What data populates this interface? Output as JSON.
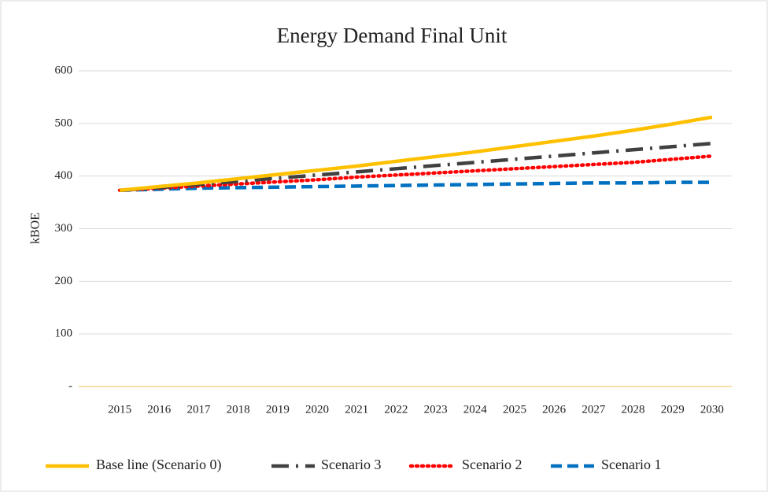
{
  "chart_data": {
    "type": "line",
    "title": "Energy Demand Final Unit",
    "ylabel": "kBOE",
    "categories": [
      "2015",
      "2016",
      "2017",
      "2018",
      "2019",
      "2020",
      "2021",
      "2022",
      "2023",
      "2024",
      "2025",
      "2026",
      "2027",
      "2028",
      "2029",
      "2030"
    ],
    "series": [
      {
        "name": "Base line (Scenario 0)",
        "color": "#ffc000",
        "line_style": "solid",
        "values": [
          373,
          380,
          387,
          395,
          403,
          411,
          419,
          428,
          437,
          446,
          456,
          466,
          476,
          487,
          499,
          512
        ]
      },
      {
        "name": "Scenario 3",
        "color": "#404040",
        "line_style": "dash-dot",
        "values": [
          373,
          378,
          384,
          390,
          396,
          402,
          408,
          414,
          420,
          426,
          432,
          438,
          444,
          450,
          456,
          462
        ]
      },
      {
        "name": "Scenario 2",
        "color": "#ff0000",
        "line_style": "dot",
        "values": [
          373,
          377,
          381,
          385,
          389,
          393,
          398,
          402,
          406,
          410,
          414,
          418,
          422,
          426,
          432,
          438
        ]
      },
      {
        "name": "Scenario 1",
        "color": "#0070c0",
        "line_style": "dash",
        "values": [
          373,
          375,
          377,
          378,
          379,
          380,
          381,
          382,
          383,
          384,
          385,
          386,
          387,
          387,
          388,
          388
        ]
      }
    ],
    "ylim": [
      0,
      600
    ],
    "yticks": [
      {
        "value": 0,
        "label": "-"
      },
      100,
      200,
      300,
      400,
      500,
      600
    ],
    "grid": true,
    "legend": "bottom"
  }
}
